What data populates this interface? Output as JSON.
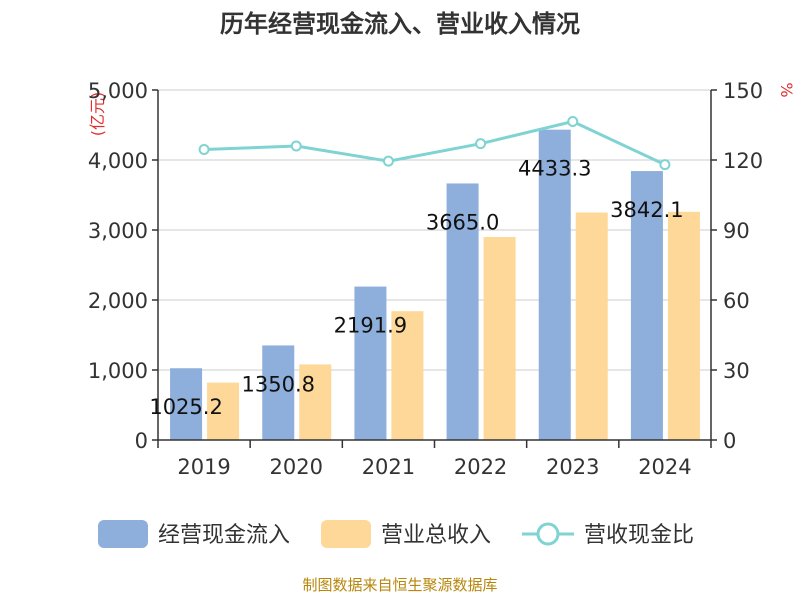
{
  "chart_data": {
    "type": "bar",
    "title": "历年经营现金流入、营业收入情况",
    "categories": [
      "2019",
      "2020",
      "2021",
      "2022",
      "2023",
      "2024"
    ],
    "left_axis": {
      "unit": "(亿元)",
      "min": 0,
      "max": 5000,
      "ticks": [
        "0",
        "1,000",
        "2,000",
        "3,000",
        "4,000",
        "5,000"
      ]
    },
    "right_axis": {
      "unit": "%",
      "min": 0,
      "max": 150,
      "ticks": [
        "0",
        "30",
        "60",
        "90",
        "120",
        "150"
      ]
    },
    "series": [
      {
        "name": "经营现金流入",
        "kind": "bar",
        "axis": "left",
        "color": "#8eaedb",
        "values": [
          1025.2,
          1350.8,
          2191.9,
          3665.0,
          4433.3,
          3842.1
        ],
        "labels": [
          "1025.2",
          "1350.8",
          "2191.9",
          "3665.0",
          "4433.3",
          "3842.1"
        ]
      },
      {
        "name": "营业总收入",
        "kind": "bar",
        "axis": "left",
        "color": "#fdd898",
        "values": [
          820,
          1080,
          1840,
          2900,
          3250,
          3260
        ]
      },
      {
        "name": "营收现金比",
        "kind": "line",
        "axis": "right",
        "color": "#7fd3d3",
        "values": [
          124.5,
          126,
          119.5,
          127,
          136.5,
          118
        ]
      }
    ],
    "grid": true,
    "legend_position": "bottom"
  },
  "source": "制图数据来自恒生聚源数据库"
}
